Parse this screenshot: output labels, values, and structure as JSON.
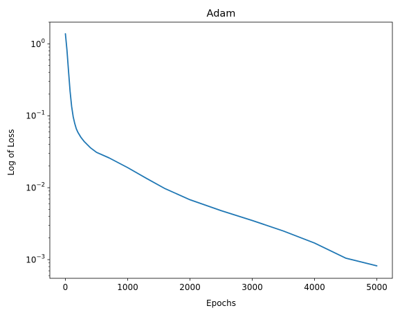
{
  "chart_data": {
    "type": "line",
    "title": "Adam",
    "xlabel": "Epochs",
    "ylabel": "Log of Loss",
    "yscale": "log",
    "xlim": [
      -250,
      5250
    ],
    "ylim": [
      0.00055,
      2.0
    ],
    "grid": false,
    "x_ticks": [
      {
        "value": 0,
        "label": "0"
      },
      {
        "value": 1000,
        "label": "1000"
      },
      {
        "value": 2000,
        "label": "2000"
      },
      {
        "value": 3000,
        "label": "3000"
      },
      {
        "value": 4000,
        "label": "4000"
      },
      {
        "value": 5000,
        "label": "5000"
      }
    ],
    "y_ticks": [
      {
        "value": 1,
        "base": "10",
        "exp": "0"
      },
      {
        "value": 0.1,
        "base": "10",
        "exp": "−1"
      },
      {
        "value": 0.01,
        "base": "10",
        "exp": "−2"
      },
      {
        "value": 0.001,
        "base": "10",
        "exp": "−3"
      }
    ],
    "series": [
      {
        "color": "#1f77b4",
        "x": [
          0,
          25,
          50,
          75,
          100,
          125,
          150,
          175,
          200,
          250,
          300,
          400,
          500,
          700,
          1000,
          1300,
          1600,
          2000,
          2500,
          3000,
          3500,
          4000,
          4500,
          5000
        ],
        "y": [
          1.38,
          0.82,
          0.42,
          0.22,
          0.135,
          0.097,
          0.078,
          0.066,
          0.059,
          0.05,
          0.044,
          0.036,
          0.031,
          0.026,
          0.019,
          0.0135,
          0.0097,
          0.0068,
          0.0048,
          0.0035,
          0.0025,
          0.0017,
          0.00105,
          0.00082
        ]
      }
    ]
  }
}
